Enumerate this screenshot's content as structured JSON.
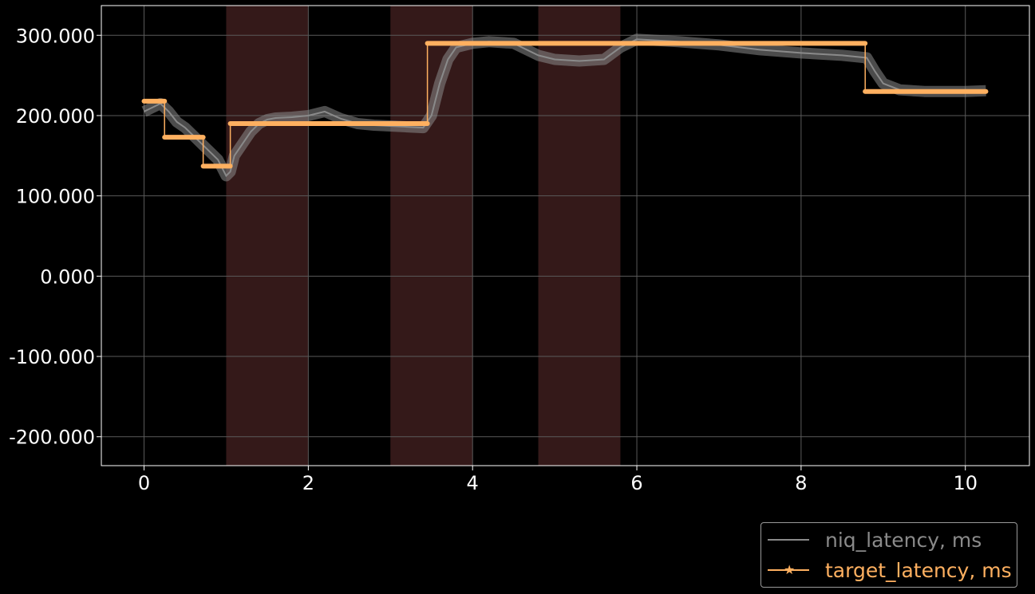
{
  "chart_data": {
    "type": "line",
    "title": "",
    "xlabel": "",
    "ylabel": "",
    "xlim": [
      -0.52,
      10.78
    ],
    "ylim": [
      -236,
      337
    ],
    "x_ticks": [
      0,
      2,
      4,
      6,
      8,
      10
    ],
    "x_tick_labels": [
      "0",
      "2",
      "4",
      "6",
      "8",
      "10"
    ],
    "y_ticks": [
      -200,
      -100,
      0,
      100,
      200,
      300
    ],
    "y_tick_labels": [
      "-200.000",
      "-100.000",
      "0.000",
      "100.000",
      "200.000",
      "300.000"
    ],
    "grid": true,
    "background": "#000000",
    "legend_position": "below-right",
    "shaded_regions": [
      {
        "x_start": 1.0,
        "x_end": 2.0
      },
      {
        "x_start": 3.0,
        "x_end": 4.0
      },
      {
        "x_start": 4.8,
        "x_end": 5.8
      }
    ],
    "shade_color": "#3a1c1c",
    "series": [
      {
        "name": "niq_latency, ms",
        "color": "#8a8a8a",
        "style": "line",
        "x": [
          0.0,
          0.1,
          0.2,
          0.3,
          0.4,
          0.5,
          0.6,
          0.7,
          0.8,
          0.9,
          1.0,
          1.05,
          1.1,
          1.2,
          1.3,
          1.4,
          1.5,
          1.6,
          1.8,
          2.0,
          2.2,
          2.4,
          2.6,
          2.8,
          3.0,
          3.2,
          3.4,
          3.5,
          3.6,
          3.7,
          3.8,
          4.0,
          4.2,
          4.5,
          4.8,
          5.0,
          5.3,
          5.6,
          5.8,
          6.0,
          6.5,
          7.0,
          7.5,
          8.0,
          8.5,
          8.8,
          8.9,
          9.0,
          9.2,
          9.5,
          10.0,
          10.25
        ],
        "y": [
          205,
          210,
          215,
          205,
          192,
          185,
          175,
          165,
          155,
          145,
          125,
          130,
          150,
          165,
          180,
          190,
          195,
          197,
          198,
          200,
          205,
          196,
          190,
          188,
          187,
          186,
          185,
          200,
          240,
          270,
          285,
          290,
          292,
          290,
          275,
          270,
          268,
          270,
          285,
          295,
          292,
          288,
          282,
          278,
          275,
          272,
          255,
          240,
          232,
          230,
          230,
          231
        ]
      },
      {
        "name": "target_latency, ms",
        "color": "#ffb060",
        "style": "step-star",
        "x": [
          0.0,
          0.25,
          0.25,
          0.72,
          0.72,
          1.05,
          1.05,
          3.45,
          3.45,
          8.78,
          8.78,
          10.25
        ],
        "y": [
          218,
          218,
          173,
          173,
          137,
          137,
          190,
          190,
          290,
          290,
          230,
          230
        ]
      }
    ]
  },
  "legend": {
    "entries": [
      {
        "label": "niq_latency, ms",
        "color": "#8a8a8a"
      },
      {
        "label": "target_latency, ms",
        "color": "#ffb060"
      }
    ]
  }
}
